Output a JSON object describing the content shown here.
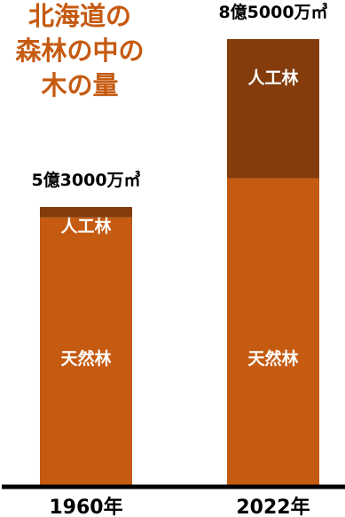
{
  "chart_data": {
    "type": "bar",
    "stacked": true,
    "title_lines": [
      "北海道の",
      "森林の中の",
      "木の量"
    ],
    "categories": [
      "1960年",
      "2022年"
    ],
    "totals": [
      "5億3000万㎥",
      "8億5000万㎥"
    ],
    "series": [
      {
        "name": "天然林",
        "values": [
          51000,
          58500
        ],
        "color": "#C55A11"
      },
      {
        "name": "人工林",
        "values": [
          2000,
          26500
        ],
        "color": "#843C0C"
      }
    ],
    "ylim": [
      0,
      85000
    ],
    "grid": false,
    "legend": "none"
  },
  "colors": {
    "title": "#C55A11",
    "segment_text": "#ffffff",
    "axis_text": "#000000",
    "baseline": "#000000"
  }
}
